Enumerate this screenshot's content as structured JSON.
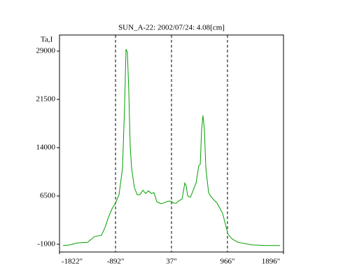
{
  "chart_data": {
    "type": "line",
    "title": "SUN_A-22: 2002/07/24: 4.08[cm]",
    "y_label": "Ta,I",
    "x": [
      -1764,
      -1648,
      -1532,
      -1357,
      -1241,
      -1125,
      -1067,
      -1009,
      -951,
      -893,
      -834,
      -776,
      -741,
      -718,
      -695,
      -672,
      -648,
      -625,
      -579,
      -532,
      -486,
      -439,
      -393,
      -346,
      -300,
      -253,
      -207,
      -137,
      -67,
      -21,
      26,
      72,
      119,
      165,
      212,
      258,
      281,
      305,
      351,
      398,
      444,
      490,
      514,
      537,
      560,
      583,
      607,
      653,
      700,
      793,
      885,
      932,
      978,
      1048,
      1141,
      1374,
      1606,
      1838
    ],
    "series": [
      {
        "name": "Ta,I",
        "color": "#00a000",
        "values": [
          -1200,
          -1100,
          -800,
          -700,
          200,
          400,
          1600,
          3200,
          4500,
          5400,
          6700,
          10800,
          20600,
          29300,
          28800,
          22800,
          14100,
          10800,
          7800,
          6700,
          6700,
          7400,
          6900,
          7300,
          6900,
          7000,
          5600,
          5300,
          5500,
          5700,
          5700,
          5400,
          5400,
          5800,
          6000,
          8500,
          8100,
          6500,
          6300,
          7400,
          8500,
          11200,
          11400,
          16800,
          19000,
          16800,
          10800,
          7000,
          6300,
          5400,
          3800,
          2100,
          500,
          -200,
          -700,
          -1100,
          -1200,
          -1200
        ]
      }
    ],
    "xlim": [
      -1822,
      1896
    ],
    "xticks": [
      {
        "value": -1822,
        "label": "-1822\""
      },
      {
        "value": -892,
        "label": "-892\""
      },
      {
        "value": 37,
        "label": "37\""
      },
      {
        "value": 966,
        "label": "966\""
      },
      {
        "value": 1896,
        "label": "1896\""
      }
    ],
    "ylim": [
      -2200,
      31500
    ],
    "yticks": [
      -1000,
      6500,
      14000,
      21500,
      29000
    ],
    "xgrid": true
  }
}
